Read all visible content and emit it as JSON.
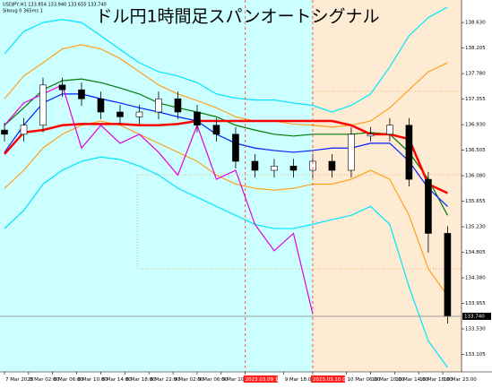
{
  "header": {
    "symbol_line": "USDJPY,H1  133.854 133.940 133.655 133.740",
    "info_line": "Sikoug 0 365ms 1"
  },
  "chart_data": {
    "type": "candlestick",
    "title": "ドル円1時間足スパンオートシグナル",
    "x": [
      0,
      4,
      8,
      12,
      16,
      20,
      24,
      28,
      32,
      36,
      40,
      44,
      48,
      52,
      56,
      60,
      64,
      68,
      72,
      76,
      80,
      84,
      88,
      92
    ],
    "open": [
      136.84,
      136.77,
      136.92,
      137.59,
      137.51,
      137.36,
      137.14,
      137.06,
      137.14,
      137.36,
      137.14,
      136.92,
      136.77,
      136.32,
      136.17,
      136.24,
      136.17,
      136.32,
      136.17,
      136.74,
      136.77,
      136.92,
      136.02,
      135.12
    ],
    "high": [
      136.96,
      137.04,
      137.71,
      137.71,
      137.63,
      137.48,
      137.26,
      137.26,
      137.48,
      137.48,
      137.26,
      137.04,
      136.89,
      136.44,
      136.36,
      136.36,
      136.44,
      136.44,
      136.89,
      136.89,
      137.04,
      137.04,
      136.14,
      135.24
    ],
    "low": [
      136.65,
      136.65,
      136.8,
      137.39,
      137.24,
      137.02,
      136.94,
      136.94,
      137.02,
      137.02,
      136.8,
      136.65,
      136.2,
      136.05,
      136.05,
      136.05,
      136.05,
      136.05,
      136.05,
      136.65,
      136.65,
      135.9,
      134.8,
      133.62
    ],
    "close": [
      136.77,
      136.92,
      137.59,
      137.51,
      137.36,
      137.14,
      137.06,
      137.14,
      137.36,
      137.14,
      136.92,
      136.77,
      136.32,
      136.17,
      136.24,
      136.17,
      136.32,
      136.17,
      136.77,
      136.77,
      136.92,
      136.02,
      135.12,
      133.74
    ],
    "up_color": "#ffffff",
    "down_color": "#000000",
    "series": [
      {
        "color": "#00e5ff",
        "values": [
          138.11,
          138.48,
          138.63,
          138.68,
          138.63,
          138.41,
          138.18,
          137.96,
          137.81,
          137.74,
          137.63,
          137.44,
          137.37,
          137.34,
          137.34,
          137.29,
          137.25,
          137.14,
          137.25,
          137.44,
          137.89,
          138.41,
          138.71,
          138.89
        ]
      },
      {
        "color": "#ffa020",
        "values": [
          137.36,
          137.74,
          137.96,
          138.19,
          138.26,
          138.19,
          138.03,
          137.81,
          137.59,
          137.44,
          137.33,
          137.21,
          137.06,
          136.99,
          136.99,
          136.94,
          136.92,
          136.89,
          136.92,
          136.99,
          137.21,
          137.51,
          137.81,
          137.96
        ]
      },
      {
        "color": "#007a00",
        "values": [
          136.92,
          137.21,
          137.51,
          137.66,
          137.69,
          137.63,
          137.54,
          137.44,
          137.29,
          137.21,
          137.14,
          137.06,
          136.92,
          136.84,
          136.77,
          136.74,
          136.77,
          136.77,
          136.77,
          136.8,
          136.77,
          136.47,
          136.02,
          135.42
        ]
      },
      {
        "color": "#ffa020",
        "values": [
          135.87,
          136.17,
          136.54,
          136.77,
          136.92,
          136.99,
          136.92,
          136.77,
          136.62,
          136.47,
          136.32,
          136.09,
          135.94,
          135.87,
          135.84,
          135.87,
          135.94,
          135.94,
          136.02,
          136.17,
          136.02,
          135.42,
          134.53,
          134.08
        ]
      },
      {
        "color": "#00e5ff",
        "values": [
          135.2,
          135.5,
          135.94,
          136.17,
          136.32,
          136.39,
          136.35,
          136.24,
          136.09,
          135.87,
          135.72,
          135.57,
          135.42,
          135.27,
          135.2,
          135.2,
          135.27,
          135.35,
          135.42,
          135.57,
          135.27,
          134.23,
          133.33,
          132.89
        ]
      },
      {
        "color": "#0020ff",
        "values": [
          136.47,
          136.92,
          137.29,
          137.44,
          137.44,
          137.36,
          137.29,
          137.21,
          137.14,
          137.06,
          136.99,
          136.77,
          136.62,
          136.54,
          136.5,
          136.47,
          136.5,
          136.54,
          136.54,
          136.62,
          136.62,
          136.32,
          135.87,
          135.57
        ]
      },
      {
        "color": "#ff0000",
        "width": 2.5,
        "values": [
          136.44,
          136.8,
          136.84,
          136.92,
          136.94,
          136.94,
          136.94,
          136.92,
          136.92,
          136.94,
          136.99,
          136.99,
          136.99,
          136.99,
          136.99,
          136.99,
          136.99,
          136.99,
          136.92,
          136.77,
          136.77,
          136.69,
          135.94,
          135.79
        ]
      },
      {
        "color": "#e000e0",
        "values": [
          136.92,
          137.29,
          137.44,
          137.59,
          136.54,
          136.92,
          136.62,
          136.77,
          136.47,
          136.09,
          136.92,
          136.02,
          136.17,
          135.27,
          134.83,
          135.12,
          133.78,
          null,
          null,
          null,
          null,
          null,
          null,
          null
        ]
      }
    ],
    "xlim": [
      -0.93,
      94.9
    ],
    "xticks": [
      {
        "value": 0,
        "label": "7 Mar 2023"
      },
      {
        "value": 5,
        "label": "8 Mar 02:00"
      },
      {
        "value": 10,
        "label": "8 Mar 06:00"
      },
      {
        "value": 15,
        "label": "8 Mar 10:00"
      },
      {
        "value": 20,
        "label": "8 Mar 14:00"
      },
      {
        "value": 25,
        "label": "8 Mar 18:00"
      },
      {
        "value": 30,
        "label": "8 Mar 22:00"
      },
      {
        "value": 35,
        "label": "9 Mar 02:00"
      },
      {
        "value": 40,
        "label": "9 Mar 06:00"
      },
      {
        "value": 45,
        "label": "9 Mar 10:00"
      },
      {
        "value": 50,
        "label": "2023.03.09 13:00",
        "highlight": true
      },
      {
        "value": 58,
        "label": "9 Mar 18:00"
      },
      {
        "value": 64,
        "label": "2023.03.10 03:00",
        "highlight": true
      },
      {
        "value": 71,
        "label": "10 Mar 06:00"
      },
      {
        "value": 76,
        "label": "10 Mar 10:00"
      },
      {
        "value": 81,
        "label": "10 Mar 14:00"
      },
      {
        "value": 86,
        "label": "10 Mar 18:00"
      },
      {
        "value": 91,
        "label": "10 Mar 23:00"
      }
    ],
    "ylim": [
      132.815,
      138.885
    ],
    "yticks": [
      {
        "value": 138.63,
        "label": "138.630"
      },
      138.205,
      {
        "value": 137.78,
        "label": "137.780"
      },
      137.355,
      {
        "value": 136.93,
        "label": "136.930"
      },
      136.505,
      {
        "value": 136.08,
        "label": "136.080"
      },
      135.655,
      {
        "value": 135.23,
        "label": "135.230"
      },
      134.805,
      {
        "value": 134.38,
        "label": "134.380"
      },
      133.955,
      {
        "value": 133.53,
        "label": "133.530"
      },
      133.105
    ],
    "current_price": {
      "value": 133.74,
      "label": "133.740"
    }
  }
}
